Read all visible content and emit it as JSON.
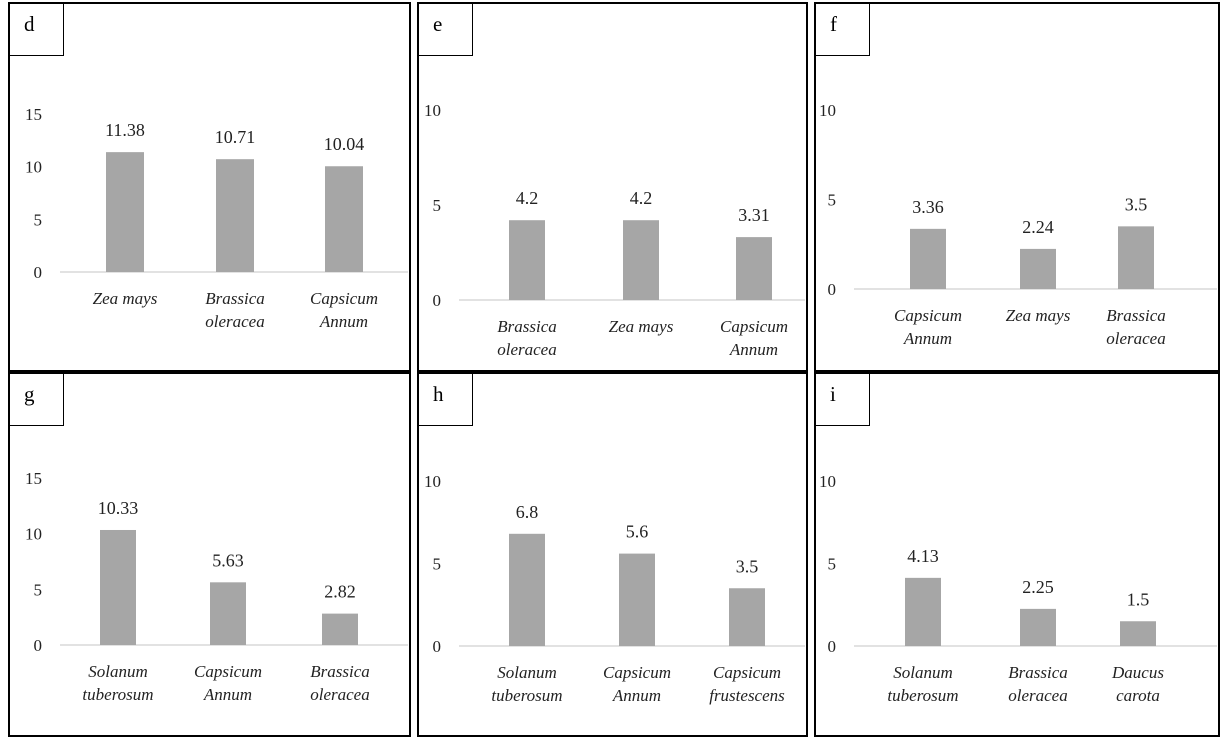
{
  "chart_data": [
    {
      "panel": "d",
      "type": "bar",
      "ylim": [
        0,
        15
      ],
      "yticks": [
        0,
        5,
        10,
        15
      ],
      "categories": [
        [
          "Zea mays"
        ],
        [
          "Brassica",
          "oleracea"
        ],
        [
          "Capsicum",
          "Annum"
        ]
      ],
      "values": [
        11.38,
        10.71,
        10.04
      ],
      "value_labels": [
        "11.38",
        "10.71",
        "10.04"
      ]
    },
    {
      "panel": "e",
      "type": "bar",
      "ylim": [
        0,
        10
      ],
      "yticks": [
        0,
        5,
        10
      ],
      "categories": [
        [
          "Brassica",
          "oleracea"
        ],
        [
          "Zea mays"
        ],
        [
          "Capsicum",
          "Annum"
        ]
      ],
      "values": [
        4.2,
        4.2,
        3.31
      ],
      "value_labels": [
        "4.2",
        "4.2",
        "3.31"
      ]
    },
    {
      "panel": "f",
      "type": "bar",
      "ylim": [
        0,
        10
      ],
      "yticks": [
        0,
        5,
        10
      ],
      "categories": [
        [
          "Capsicum",
          "Annum"
        ],
        [
          "Zea mays"
        ],
        [
          "Brassica",
          "oleracea"
        ]
      ],
      "values": [
        3.36,
        2.24,
        3.5
      ],
      "value_labels": [
        "3.36",
        "2.24",
        "3.5"
      ]
    },
    {
      "panel": "g",
      "type": "bar",
      "ylim": [
        0,
        15
      ],
      "yticks": [
        0,
        5,
        10,
        15
      ],
      "categories": [
        [
          "Solanum",
          "tuberosum"
        ],
        [
          "Capsicum",
          "Annum"
        ],
        [
          "Brassica",
          "oleracea"
        ]
      ],
      "values": [
        10.33,
        5.63,
        2.82
      ],
      "value_labels": [
        "10.33",
        "5.63",
        "2.82"
      ]
    },
    {
      "panel": "h",
      "type": "bar",
      "ylim": [
        0,
        10
      ],
      "yticks": [
        0,
        5,
        10
      ],
      "categories": [
        [
          "Solanum",
          "tuberosum"
        ],
        [
          "Capsicum",
          "Annum"
        ],
        [
          "Capsicum",
          "frustescens"
        ]
      ],
      "values": [
        6.8,
        5.6,
        3.5
      ],
      "value_labels": [
        "6.8",
        "5.6",
        "3.5"
      ]
    },
    {
      "panel": "i",
      "type": "bar",
      "ylim": [
        0,
        10
      ],
      "yticks": [
        0,
        5,
        10
      ],
      "categories": [
        [
          "Solanum",
          "tuberosum"
        ],
        [
          "Brassica",
          "oleracea"
        ],
        [
          "Daucus",
          "carota"
        ]
      ],
      "values": [
        4.13,
        2.25,
        1.5
      ],
      "value_labels": [
        "4.13",
        "2.25",
        "1.5"
      ]
    }
  ]
}
